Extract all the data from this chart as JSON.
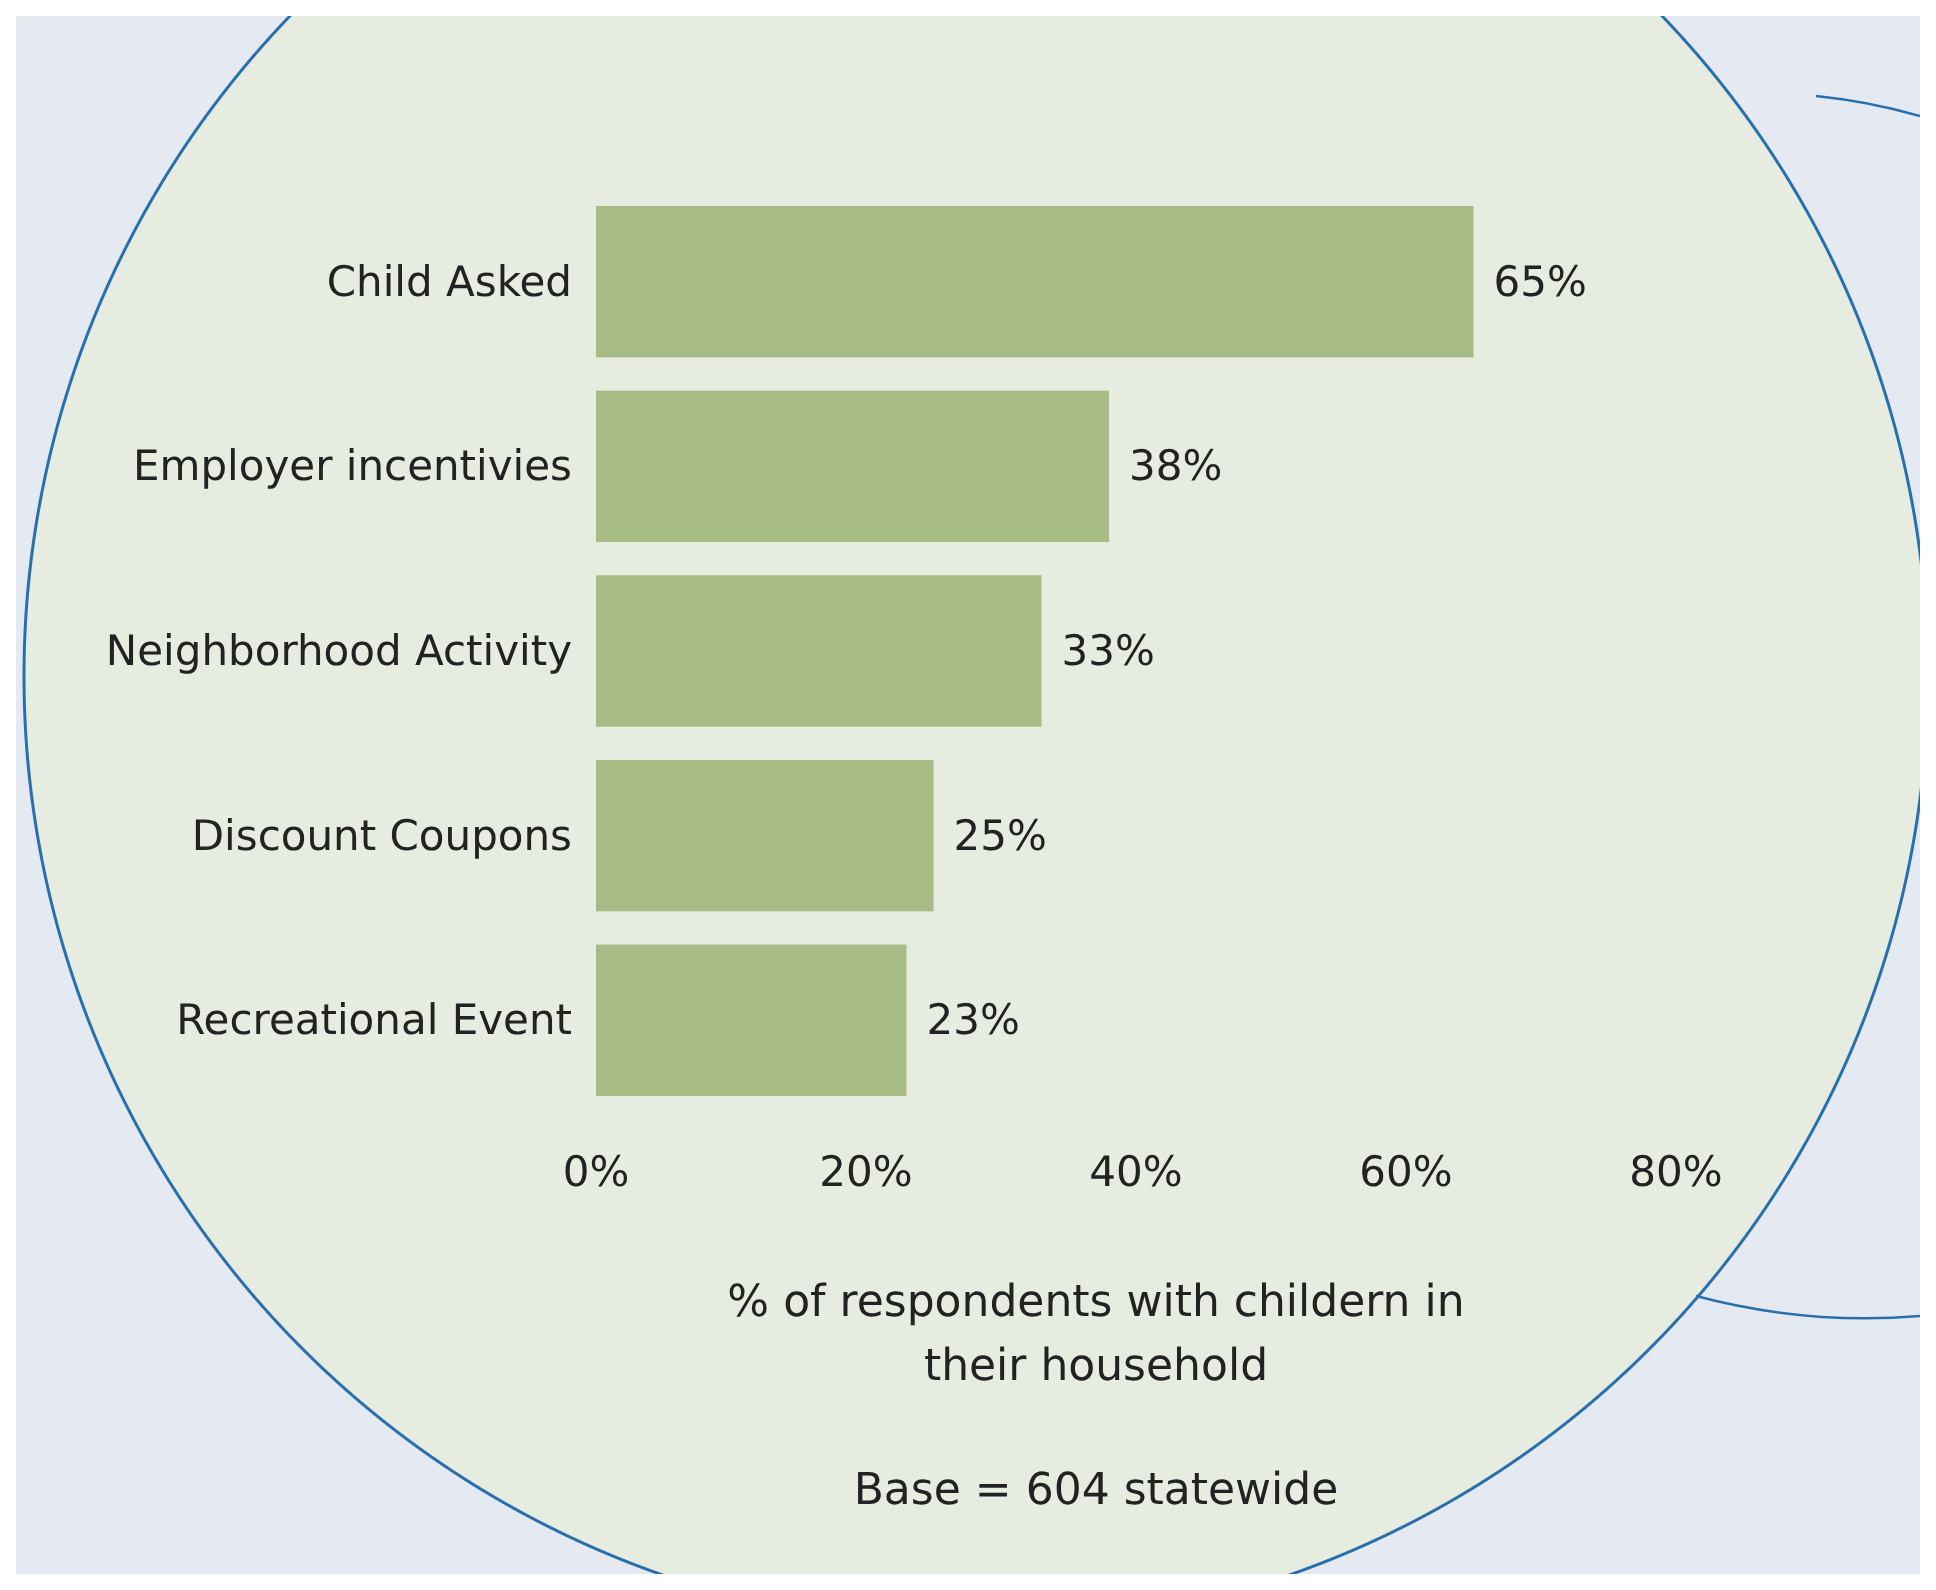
{
  "chart_data": {
    "type": "bar",
    "orientation": "horizontal",
    "categories": [
      "Child Asked",
      "Employer incentivies",
      "Neighborhood Activity",
      "Discount Coupons",
      "Recreational Event"
    ],
    "values": [
      65,
      38,
      33,
      25,
      23
    ],
    "value_labels": [
      "65%",
      "38%",
      "33%",
      "25%",
      "23%"
    ],
    "color": "#a7bc84",
    "xlim": [
      0,
      80
    ],
    "xticks": [
      {
        "value": 0,
        "label": "0%"
      },
      {
        "value": 20,
        "label": "20%"
      },
      {
        "value": 40,
        "label": "40%"
      },
      {
        "value": 60,
        "label": "60%"
      },
      {
        "value": 80,
        "label": "80%"
      }
    ],
    "xlabel": "% of respondents with childern in their household",
    "annotations": [
      "Base = 604 statewide"
    ],
    "grid": false
  }
}
